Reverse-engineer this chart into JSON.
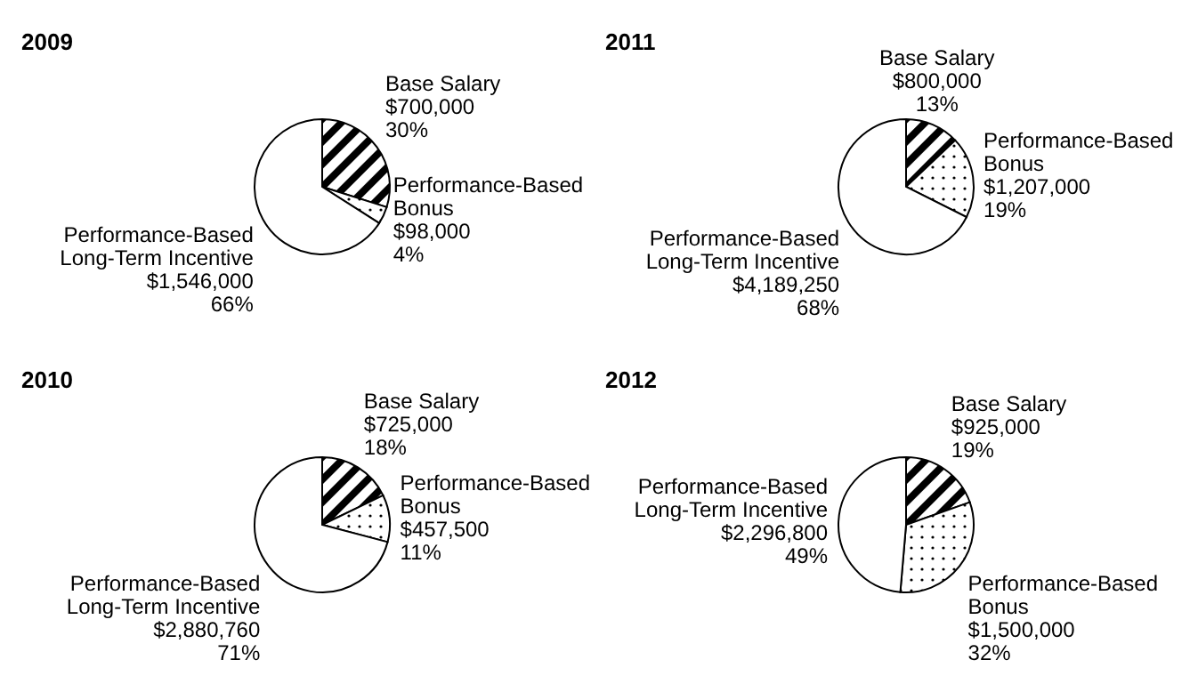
{
  "chart_data": [
    {
      "type": "pie",
      "title": "2009",
      "categories": [
        "Base Salary",
        "Performance-Based Bonus",
        "Performance-Based Long-Term Incentive"
      ],
      "values": [
        700000,
        98000,
        1546000
      ],
      "value_labels": [
        "$700,000 30%",
        "$98,000 4%",
        "$1,546,000 66%"
      ],
      "colors": [
        "#000000",
        "#000000",
        "#ffffff"
      ]
    },
    {
      "type": "pie",
      "title": "2011",
      "categories": [
        "Base Salary",
        "Performance-Based Bonus",
        "Performance-Based Long-Term Incentive"
      ],
      "values": [
        800000,
        1207000,
        4189250
      ],
      "value_labels": [
        "$800,000 13%",
        "$1,207,000 19%",
        "$4,189,250 68%"
      ],
      "colors": [
        "#000000",
        "#000000",
        "#ffffff"
      ]
    },
    {
      "type": "pie",
      "title": "2010",
      "categories": [
        "Base Salary",
        "Performance-Based Bonus",
        "Performance-Based Long-Term Incentive"
      ],
      "values": [
        725000,
        457500,
        2880760
      ],
      "value_labels": [
        "$725,000 18%",
        "$457,500 11%",
        "$2,880,760 71%"
      ],
      "colors": [
        "#000000",
        "#000000",
        "#ffffff"
      ]
    },
    {
      "type": "pie",
      "title": "2012",
      "categories": [
        "Base Salary",
        "Performance-Based Bonus",
        "Performance-Based Long-Term Incentive"
      ],
      "values": [
        925000,
        1500000,
        2296800
      ],
      "value_labels": [
        "$925,000 19%",
        "$1,500,000 32%",
        "$2,296,800 49%"
      ],
      "colors": [
        "#000000",
        "#000000",
        "#ffffff"
      ]
    }
  ]
}
